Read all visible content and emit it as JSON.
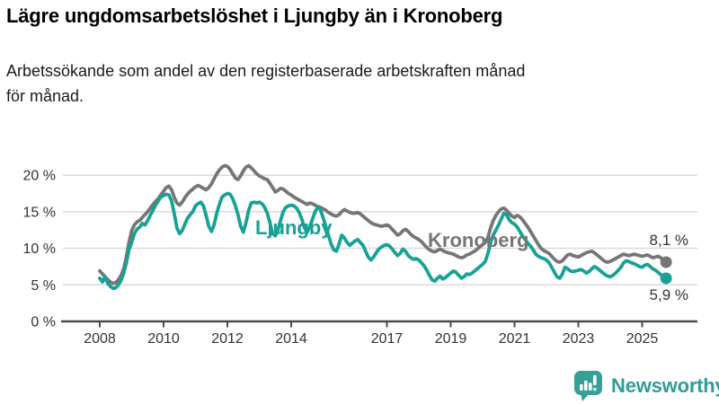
{
  "title": "Lägre ungdomsarbetslöshet i Ljungby än i Kronoberg",
  "subtitle": "Arbetssökande som andel av den registerbaserade arbetskraften månad\nför månad.",
  "footer": {
    "brand": "Newsworthy"
  },
  "colors": {
    "accent_teal": "#18a196",
    "neutral_gray": "#767676",
    "grid": "#d9d9d9",
    "axis": "#4a4a4a",
    "tick_label": "#333333",
    "brand_text": "#2f9d95",
    "brand_icon": "#35a096"
  },
  "chart_data": {
    "type": "line",
    "x_unit": "month",
    "x_start": "2008-01",
    "x_end": "2025-10",
    "x_ticks": [
      2008,
      2010,
      2012,
      2014,
      2017,
      2019,
      2021,
      2023,
      2025
    ],
    "y_ticks": [
      0,
      5,
      10,
      15,
      20
    ],
    "y_tick_suffix": " %",
    "ylim": [
      0,
      22.5
    ],
    "grid": "horizontal",
    "legend_position": "inline-labels",
    "series": [
      {
        "name": "Ljungby",
        "color": "#18a196",
        "end_label": "5,9 %",
        "end_value": 5.9,
        "values": [
          5.9,
          5.4,
          6.1,
          5.2,
          4.8,
          4.5,
          4.6,
          5.0,
          5.6,
          6.6,
          8.0,
          9.8,
          10.8,
          12.0,
          12.6,
          12.9,
          13.4,
          13.2,
          13.8,
          14.5,
          15.2,
          15.9,
          16.5,
          17.0,
          17.2,
          17.4,
          17.3,
          16.5,
          14.8,
          12.8,
          12.0,
          12.4,
          13.3,
          14.1,
          14.6,
          15.0,
          15.8,
          16.1,
          16.3,
          15.8,
          14.5,
          13.0,
          12.3,
          13.2,
          14.8,
          16.0,
          17.0,
          17.3,
          17.5,
          17.4,
          16.8,
          15.8,
          14.6,
          13.0,
          12.2,
          13.5,
          15.2,
          16.2,
          16.3,
          16.2,
          16.3,
          16.1,
          15.6,
          14.8,
          13.5,
          12.0,
          11.7,
          12.5,
          13.8,
          15.0,
          15.6,
          15.8,
          15.9,
          15.8,
          15.5,
          14.9,
          14.0,
          12.8,
          12.2,
          13.0,
          14.0,
          15.0,
          15.6,
          15.3,
          14.2,
          13.0,
          11.8,
          10.6,
          9.8,
          9.6,
          10.6,
          11.8,
          11.4,
          10.8,
          10.4,
          10.7,
          11.0,
          11.2,
          10.8,
          10.4,
          9.6,
          8.8,
          8.4,
          8.8,
          9.4,
          9.9,
          10.2,
          10.4,
          10.5,
          10.3,
          9.9,
          9.4,
          9.0,
          9.3,
          9.9,
          9.6,
          9.0,
          8.7,
          8.5,
          8.6,
          8.4,
          8.0,
          7.6,
          7.0,
          6.3,
          5.7,
          5.5,
          5.9,
          6.2,
          5.8,
          6.0,
          6.3,
          6.6,
          6.9,
          6.7,
          6.3,
          5.9,
          6.1,
          6.5,
          6.4,
          6.6,
          6.9,
          7.2,
          7.5,
          7.8,
          8.2,
          9.3,
          10.8,
          11.8,
          12.5,
          13.2,
          14.0,
          14.8,
          14.6,
          13.9,
          13.5,
          13.3,
          12.9,
          12.3,
          11.7,
          11.2,
          10.7,
          10.3,
          9.8,
          9.2,
          8.9,
          8.7,
          8.6,
          8.4,
          8.0,
          7.4,
          6.7,
          6.1,
          5.9,
          6.5,
          7.4,
          7.2,
          6.9,
          6.8,
          6.9,
          7.0,
          7.1,
          6.9,
          6.6,
          6.8,
          7.2,
          7.5,
          7.3,
          7.0,
          6.7,
          6.4,
          6.2,
          6.1,
          6.3,
          6.6,
          7.0,
          7.4,
          8.0,
          8.3,
          8.2,
          8.0,
          7.9,
          7.7,
          7.5,
          7.4,
          7.7,
          7.8,
          7.5,
          7.2,
          7.0,
          6.7,
          6.4,
          6.1,
          5.9
        ]
      },
      {
        "name": "Kronoberg",
        "color": "#767676",
        "end_label": "8,1 %",
        "end_value": 8.1,
        "values": [
          6.9,
          6.5,
          6.1,
          5.7,
          5.4,
          5.2,
          5.3,
          5.7,
          6.3,
          7.2,
          8.8,
          10.8,
          12.4,
          13.2,
          13.6,
          13.8,
          14.2,
          14.6,
          15.0,
          15.5,
          16.0,
          16.4,
          16.8,
          17.3,
          17.8,
          18.3,
          18.5,
          18.0,
          17.0,
          16.2,
          15.9,
          16.3,
          16.9,
          17.4,
          17.8,
          18.1,
          18.4,
          18.6,
          18.4,
          18.2,
          18.0,
          18.3,
          18.8,
          19.5,
          20.2,
          20.7,
          21.1,
          21.3,
          21.2,
          20.8,
          20.2,
          19.6,
          19.4,
          19.9,
          20.6,
          21.1,
          21.3,
          21.0,
          20.6,
          20.2,
          19.9,
          19.7,
          19.5,
          19.4,
          18.9,
          18.3,
          17.7,
          17.9,
          18.2,
          18.1,
          17.8,
          17.5,
          17.3,
          17.0,
          16.8,
          16.6,
          16.4,
          16.2,
          16.0,
          16.2,
          16.1,
          15.9,
          15.7,
          15.6,
          15.4,
          15.2,
          14.9,
          14.7,
          14.5,
          14.4,
          14.6,
          15.0,
          15.3,
          15.1,
          14.9,
          14.8,
          14.8,
          14.9,
          14.7,
          14.4,
          14.1,
          13.8,
          13.5,
          13.3,
          13.2,
          13.1,
          13.0,
          13.1,
          13.2,
          13.0,
          12.6,
          12.2,
          11.8,
          12.0,
          12.4,
          12.6,
          12.3,
          11.9,
          11.6,
          11.4,
          11.2,
          10.9,
          10.5,
          10.1,
          9.8,
          9.6,
          9.5,
          9.7,
          9.9,
          9.7,
          9.5,
          9.4,
          9.3,
          9.2,
          9.0,
          8.8,
          8.7,
          8.8,
          9.1,
          9.2,
          9.4,
          9.6,
          9.9,
          10.2,
          10.5,
          10.8,
          11.5,
          12.8,
          13.8,
          14.5,
          15.0,
          15.4,
          15.5,
          15.2,
          14.8,
          14.4,
          14.2,
          14.5,
          14.3,
          13.9,
          13.4,
          12.9,
          12.3,
          11.7,
          11.1,
          10.5,
          10.0,
          9.7,
          9.5,
          9.3,
          8.9,
          8.5,
          8.2,
          8.1,
          8.3,
          8.7,
          9.1,
          9.2,
          9.0,
          8.9,
          8.8,
          9.0,
          9.2,
          9.4,
          9.5,
          9.6,
          9.4,
          9.1,
          8.8,
          8.5,
          8.2,
          8.1,
          8.2,
          8.4,
          8.6,
          8.8,
          9.0,
          9.2,
          9.1,
          9.0,
          9.1,
          9.2,
          9.1,
          9.0,
          8.9,
          9.0,
          9.1,
          8.9,
          8.7,
          8.8,
          8.9,
          8.7,
          8.4,
          8.1
        ]
      }
    ]
  }
}
